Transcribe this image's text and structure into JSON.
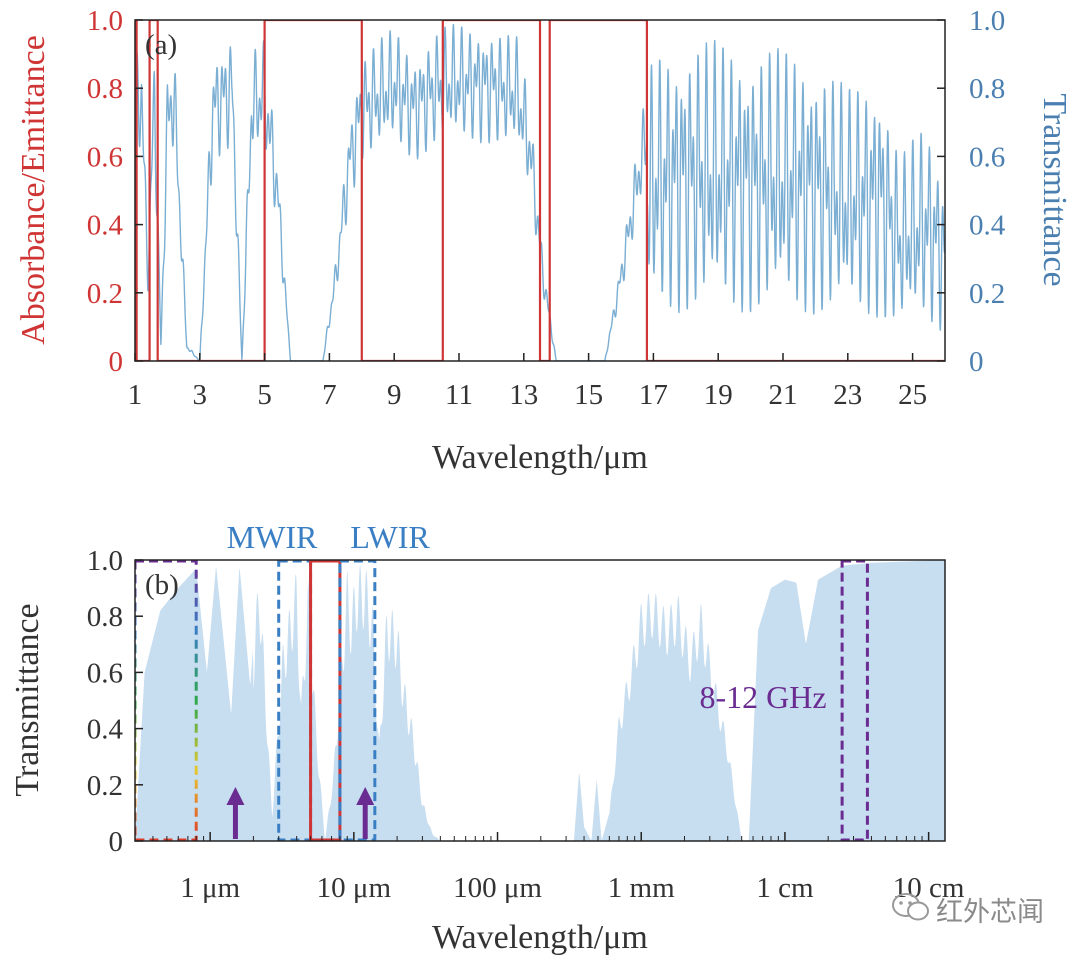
{
  "chart_data": [
    {
      "type": "line",
      "panel_label": "(a)",
      "title": "",
      "xlabel": "Wavelength/μm",
      "ylabel_left": "Absorbance/Emittance",
      "ylabel_right": "Transmittance",
      "xlim": [
        1,
        26
      ],
      "ylim": [
        0,
        1
      ],
      "x_ticks": [
        "1",
        "3",
        "5",
        "7",
        "9",
        "11",
        "13",
        "15",
        "17",
        "19",
        "21",
        "23",
        "25"
      ],
      "y_ticks_left": [
        "0",
        "0.2",
        "0.4",
        "0.6",
        "0.8",
        "1.0"
      ],
      "y_ticks_right": [
        "0",
        "0.2",
        "0.4",
        "0.6",
        "0.8",
        "1.0"
      ],
      "colors": {
        "left_axis": "#d03535",
        "right_axis": "#4a7fb0",
        "transmittance": "#7aaed3",
        "absorbance": "#d03535"
      },
      "series": [
        {
          "name": "Absorbance/Emittance",
          "kind": "step",
          "color": "#d03535",
          "high_bands": [
            [
              1.0,
              1.05
            ],
            [
              1.45,
              1.7
            ],
            [
              5.0,
              8.0
            ],
            [
              10.5,
              13.5
            ],
            [
              13.8,
              16.8
            ]
          ]
        },
        {
          "name": "Transmittance",
          "color": "#7aaed3",
          "envelope": [
            {
              "x": 1.0,
              "y": 0.9
            },
            {
              "x": 1.2,
              "y": 0.95
            },
            {
              "x": 1.4,
              "y": 0.3
            },
            {
              "x": 1.6,
              "y": 0.95
            },
            {
              "x": 1.8,
              "y": 0.05
            },
            {
              "x": 2.0,
              "y": 0.85
            },
            {
              "x": 2.2,
              "y": 0.95
            },
            {
              "x": 2.6,
              "y": 0.05
            },
            {
              "x": 3.0,
              "y": 0.0
            },
            {
              "x": 3.4,
              "y": 0.9
            },
            {
              "x": 4.0,
              "y": 0.97
            },
            {
              "x": 4.3,
              "y": 0.0
            },
            {
              "x": 4.6,
              "y": 0.9
            },
            {
              "x": 5.0,
              "y": 0.95
            },
            {
              "x": 5.4,
              "y": 0.6
            },
            {
              "x": 5.8,
              "y": 0.0
            },
            {
              "x": 6.8,
              "y": 0.0
            },
            {
              "x": 7.2,
              "y": 0.3
            },
            {
              "x": 7.6,
              "y": 0.7
            },
            {
              "x": 8.0,
              "y": 0.9
            },
            {
              "x": 9.0,
              "y": 0.98
            },
            {
              "x": 9.6,
              "y": 0.9
            },
            {
              "x": 10.4,
              "y": 0.98
            },
            {
              "x": 11.0,
              "y": 0.99
            },
            {
              "x": 12.0,
              "y": 0.98
            },
            {
              "x": 12.8,
              "y": 0.95
            },
            {
              "x": 13.2,
              "y": 0.75
            },
            {
              "x": 13.6,
              "y": 0.3
            },
            {
              "x": 14.0,
              "y": 0.0
            },
            {
              "x": 15.5,
              "y": 0.0
            },
            {
              "x": 16.0,
              "y": 0.3
            },
            {
              "x": 16.6,
              "y": 0.7
            },
            {
              "x": 17.0,
              "y": 0.9
            },
            {
              "x": 18.0,
              "y": 0.95
            },
            {
              "x": 20.0,
              "y": 0.93
            },
            {
              "x": 22.0,
              "y": 0.9
            },
            {
              "x": 23.0,
              "y": 0.8
            },
            {
              "x": 24.0,
              "y": 0.85
            },
            {
              "x": 24.6,
              "y": 0.6
            },
            {
              "x": 25.4,
              "y": 0.7
            },
            {
              "x": 26.0,
              "y": 0.55
            }
          ]
        }
      ]
    },
    {
      "type": "area",
      "panel_label": "(b)",
      "title": "",
      "xlabel": "Wavelength/μm",
      "ylabel": "Transmittance",
      "x_scale": "log",
      "xlim_um": [
        0.3,
        130000
      ],
      "ylim": [
        0,
        1
      ],
      "x_ticks": [
        "1 μm",
        "10 μm",
        "100 μm",
        "1 mm",
        "1 cm",
        "10 cm"
      ],
      "y_ticks": [
        "0",
        "0.2",
        "0.4",
        "0.6",
        "0.8",
        "1.0"
      ],
      "colors": {
        "fill": "#c7ddf0",
        "mwir_lwir": "#3a7fc4",
        "red_band": "#d03535",
        "purple": "#6a2c91"
      },
      "series": [
        {
          "name": "Transmittance",
          "points": [
            {
              "x": 0.3,
              "y": 0.0
            },
            {
              "x": 0.35,
              "y": 0.6
            },
            {
              "x": 0.45,
              "y": 0.82
            },
            {
              "x": 0.6,
              "y": 0.9
            },
            {
              "x": 0.8,
              "y": 0.97
            },
            {
              "x": 0.95,
              "y": 0.6
            },
            {
              "x": 1.1,
              "y": 0.98
            },
            {
              "x": 1.4,
              "y": 0.45
            },
            {
              "x": 1.6,
              "y": 0.98
            },
            {
              "x": 1.9,
              "y": 0.55
            },
            {
              "x": 2.2,
              "y": 0.99
            },
            {
              "x": 2.7,
              "y": 0.1
            },
            {
              "x": 3.2,
              "y": 0.7
            },
            {
              "x": 4.0,
              "y": 0.97
            },
            {
              "x": 4.3,
              "y": 0.5
            },
            {
              "x": 4.8,
              "y": 0.95
            },
            {
              "x": 5.5,
              "y": 0.4
            },
            {
              "x": 6.3,
              "y": 0.0
            },
            {
              "x": 7.2,
              "y": 0.25
            },
            {
              "x": 8.0,
              "y": 0.6
            },
            {
              "x": 9.0,
              "y": 0.97
            },
            {
              "x": 9.6,
              "y": 0.85
            },
            {
              "x": 10.5,
              "y": 0.98
            },
            {
              "x": 12.0,
              "y": 0.99
            },
            {
              "x": 13.5,
              "y": 0.85
            },
            {
              "x": 15.0,
              "y": 0.35
            },
            {
              "x": 17.0,
              "y": 0.85
            },
            {
              "x": 20.0,
              "y": 0.8
            },
            {
              "x": 22.0,
              "y": 0.6
            },
            {
              "x": 26.0,
              "y": 0.4
            },
            {
              "x": 30.0,
              "y": 0.15
            },
            {
              "x": 35.0,
              "y": 0.03
            },
            {
              "x": 40.0,
              "y": 0.0
            },
            {
              "x": 340.0,
              "y": 0.0
            },
            {
              "x": 370.0,
              "y": 0.25
            },
            {
              "x": 400.0,
              "y": 0.05
            },
            {
              "x": 450.0,
              "y": 0.0
            },
            {
              "x": 490.0,
              "y": 0.22
            },
            {
              "x": 530.0,
              "y": 0.0
            },
            {
              "x": 600.0,
              "y": 0.1
            },
            {
              "x": 700.0,
              "y": 0.45
            },
            {
              "x": 850.0,
              "y": 0.65
            },
            {
              "x": 1000.0,
              "y": 0.85
            },
            {
              "x": 1200.0,
              "y": 0.9
            },
            {
              "x": 1500.0,
              "y": 0.82
            },
            {
              "x": 1800.0,
              "y": 0.88
            },
            {
              "x": 2200.0,
              "y": 0.7
            },
            {
              "x": 2600.0,
              "y": 0.85
            },
            {
              "x": 3200.0,
              "y": 0.6
            },
            {
              "x": 4000.0,
              "y": 0.35
            },
            {
              "x": 5000.0,
              "y": 0.0
            },
            {
              "x": 5600.0,
              "y": 0.0
            },
            {
              "x": 6500.0,
              "y": 0.75
            },
            {
              "x": 8000.0,
              "y": 0.9
            },
            {
              "x": 10000.0,
              "y": 0.93
            },
            {
              "x": 12000.0,
              "y": 0.92
            },
            {
              "x": 14000.0,
              "y": 0.7
            },
            {
              "x": 17000.0,
              "y": 0.93
            },
            {
              "x": 25000.0,
              "y": 0.98
            },
            {
              "x": 40000.0,
              "y": 0.99
            },
            {
              "x": 130000.0,
              "y": 1.0
            }
          ]
        }
      ],
      "bands": [
        {
          "name": "visible-nir",
          "x0": 0.3,
          "x1": 0.8,
          "style": "dashed-rainbow"
        },
        {
          "name": "MWIR",
          "x0": 3.0,
          "x1": 5.0,
          "style": "dashed-blue"
        },
        {
          "name": "red-band",
          "x0": 5.0,
          "x1": 8.0,
          "style": "solid-red"
        },
        {
          "name": "LWIR",
          "x0": 8.0,
          "x1": 14.0,
          "style": "dashed-blue"
        },
        {
          "name": "8-12 GHz",
          "x0": 25000.0,
          "x1": 37500.0,
          "style": "dashed-purple"
        }
      ],
      "annotations": {
        "mwir": "MWIR",
        "lwir": "LWIR",
        "ghz": "8-12 GHz"
      },
      "arrows_at_um": [
        1.5,
        12.0
      ]
    }
  ],
  "watermark": "红外芯闻"
}
